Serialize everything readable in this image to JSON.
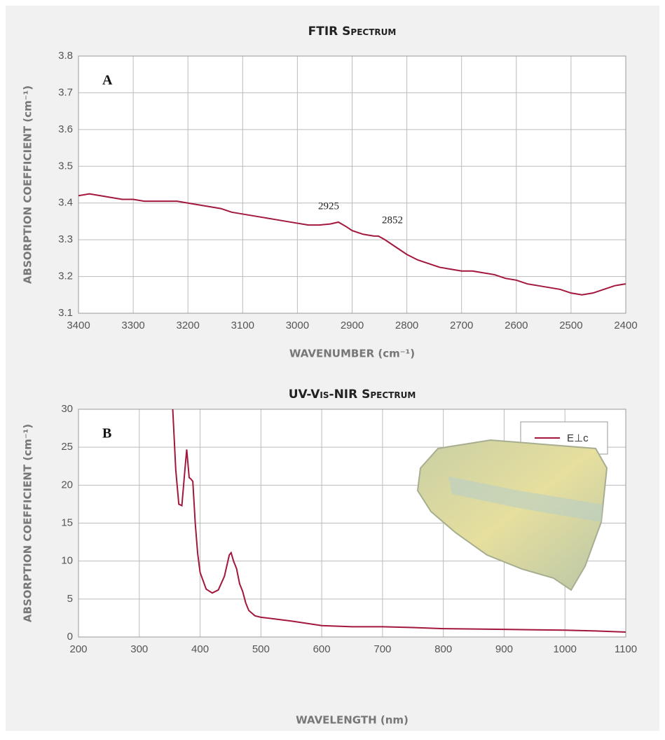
{
  "chart_data": [
    {
      "type": "line",
      "title": "FTIR Spectrum",
      "panel_label": "A",
      "x_label": "WAVENUMBER (cm⁻¹)",
      "y_label": "ABSORPTION COEFFICIENT (cm⁻¹)",
      "xlim": [
        3400,
        2400
      ],
      "ylim": [
        3.1,
        3.8
      ],
      "xticks": [
        3400,
        3300,
        3200,
        3100,
        3000,
        2900,
        2800,
        2700,
        2600,
        2500,
        2400
      ],
      "yticks": [
        3.1,
        3.2,
        3.3,
        3.4,
        3.5,
        3.6,
        3.7,
        3.8
      ],
      "grid": true,
      "annotations": [
        2925,
        2852
      ],
      "x": [
        3400,
        3380,
        3360,
        3340,
        3320,
        3300,
        3280,
        3260,
        3240,
        3220,
        3200,
        3180,
        3160,
        3140,
        3120,
        3100,
        3080,
        3060,
        3040,
        3020,
        3000,
        2980,
        2960,
        2940,
        2925,
        2910,
        2900,
        2880,
        2860,
        2852,
        2840,
        2820,
        2800,
        2780,
        2760,
        2740,
        2720,
        2700,
        2680,
        2660,
        2640,
        2620,
        2600,
        2580,
        2560,
        2540,
        2520,
        2500,
        2480,
        2460,
        2440,
        2420,
        2400
      ],
      "series": [
        {
          "name": null,
          "color": "#a3173c",
          "values": [
            3.42,
            3.425,
            3.42,
            3.415,
            3.41,
            3.41,
            3.405,
            3.405,
            3.405,
            3.405,
            3.4,
            3.395,
            3.39,
            3.385,
            3.375,
            3.37,
            3.365,
            3.36,
            3.355,
            3.35,
            3.345,
            3.34,
            3.34,
            3.343,
            3.348,
            3.335,
            3.325,
            3.315,
            3.31,
            3.31,
            3.3,
            3.28,
            3.26,
            3.245,
            3.235,
            3.225,
            3.22,
            3.215,
            3.215,
            3.21,
            3.205,
            3.195,
            3.19,
            3.18,
            3.175,
            3.17,
            3.165,
            3.155,
            3.15,
            3.155,
            3.165,
            3.175,
            3.18
          ]
        }
      ]
    },
    {
      "type": "line",
      "title": "UV-Vis-NIR Spectrum",
      "panel_label": "B",
      "x_label": "WAVELENGTH (nm)",
      "y_label": "ABSORPTION COEFFICIENT (cm⁻¹)",
      "xlim": [
        200,
        1100
      ],
      "ylim": [
        0,
        30
      ],
      "xticks": [
        200,
        300,
        400,
        500,
        600,
        700,
        800,
        900,
        1000,
        1100
      ],
      "yticks": [
        0,
        5,
        10,
        15,
        20,
        25,
        30
      ],
      "grid": true,
      "legend": "upper right",
      "x": [
        355,
        360,
        365,
        370,
        375,
        378,
        382,
        385,
        388,
        392,
        396,
        400,
        410,
        420,
        430,
        440,
        448,
        451,
        455,
        460,
        465,
        470,
        475,
        480,
        490,
        500,
        550,
        600,
        650,
        700,
        750,
        800,
        900,
        1000,
        1050,
        1100
      ],
      "series": [
        {
          "name": "E⊥c",
          "color": "#a3173c",
          "values": [
            30,
            22,
            17.5,
            17.3,
            22,
            24.7,
            21,
            20.8,
            20.5,
            15,
            11,
            8.5,
            6.3,
            5.8,
            6.2,
            8,
            10.8,
            11.1,
            10,
            9,
            7,
            6,
            4.5,
            3.5,
            2.8,
            2.6,
            2.1,
            1.5,
            1.35,
            1.35,
            1.25,
            1.1,
            1.0,
            0.9,
            0.8,
            0.65
          ]
        }
      ]
    }
  ]
}
